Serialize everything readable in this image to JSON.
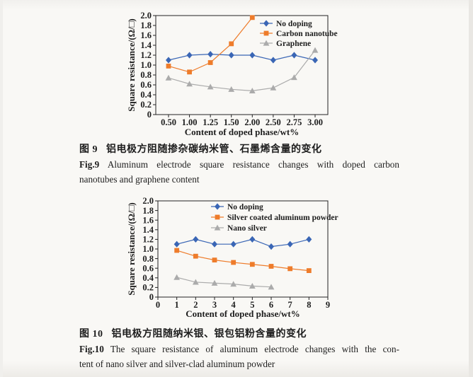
{
  "page": {
    "background": "#f9f8f5",
    "text_color": "#1e1e1e"
  },
  "colors": {
    "no_doping_blue": "#3a66b5",
    "doped_orange": "#ee7c2b",
    "doped_gray": "#ababab"
  },
  "figures": [
    {
      "caption_zh_label": "图 9",
      "caption_zh_text": "铝电极方阻随掺杂碳纳米管、石墨烯含量的变化",
      "caption_en_label": "Fig.9",
      "caption_en_line1": "Aluminum electrode square resistance changes with doped carbon",
      "caption_en_line2": "nanotubes and graphene content"
    },
    {
      "caption_zh_label": "图 10",
      "caption_zh_text": "铝电极方阻随纳米银、银包铝粉含量的变化",
      "caption_en_label": "Fig.10",
      "caption_en_line1": "The square resistance of aluminum electrode changes with the con-",
      "caption_en_line2": "tent of nano silver and silver-clad aluminum powder"
    }
  ],
  "chart_data": [
    {
      "id": "fig9",
      "type": "line",
      "title": "",
      "xlabel": "Content of doped phase/wt%",
      "ylabel": "Square resistance/(Ω/□)",
      "x_mode": "categorical",
      "categories": [
        "0.50",
        "1.00",
        "1.25",
        "1.50",
        "2.00",
        "2.50",
        "2.75",
        "3.00"
      ],
      "ylim": [
        0,
        2.0
      ],
      "yticks": [
        "0",
        "0.2",
        "0.4",
        "0.6",
        "0.8",
        "1.0",
        "1.2",
        "1.4",
        "1.6",
        "1.8",
        "2.0"
      ],
      "grid": false,
      "legend_position": "top-right-inside",
      "series": [
        {
          "name": "No doping",
          "marker": "diamond",
          "color": "#3a66b5",
          "values": [
            1.1,
            1.2,
            1.22,
            1.2,
            1.2,
            1.1,
            1.2,
            1.1
          ]
        },
        {
          "name": "Carbon nanotube",
          "marker": "square",
          "color": "#ee7c2b",
          "values": [
            0.98,
            0.86,
            1.05,
            1.43,
            1.96
          ]
        },
        {
          "name": "Graphene",
          "marker": "triangle",
          "color": "#ababab",
          "values": [
            0.74,
            0.62,
            0.56,
            0.51,
            0.48,
            0.54,
            0.75,
            1.3
          ]
        }
      ]
    },
    {
      "id": "fig10",
      "type": "line",
      "title": "",
      "xlabel": "Content of doped phase/wt%",
      "ylabel": "Square resistance/(Ω/□)",
      "x_mode": "numeric",
      "xlim": [
        0,
        9
      ],
      "xticks": [
        0,
        1,
        2,
        3,
        4,
        5,
        6,
        7,
        8,
        9
      ],
      "ylim": [
        0,
        2.0
      ],
      "yticks": [
        "0",
        "0.2",
        "0.4",
        "0.6",
        "0.8",
        "1.0",
        "1.2",
        "1.4",
        "1.6",
        "1.8",
        "2.0"
      ],
      "grid": false,
      "legend_position": "top-center-inside",
      "series": [
        {
          "name": "No doping",
          "marker": "diamond",
          "color": "#3a66b5",
          "x": [
            1,
            2,
            3,
            4,
            5,
            6,
            7,
            8
          ],
          "values": [
            1.1,
            1.2,
            1.1,
            1.1,
            1.2,
            1.05,
            1.1,
            1.2
          ]
        },
        {
          "name": "Silver coated aluminum powder",
          "marker": "square",
          "color": "#ee7c2b",
          "x": [
            1,
            2,
            3,
            4,
            5,
            6,
            7,
            8
          ],
          "values": [
            0.97,
            0.85,
            0.77,
            0.72,
            0.68,
            0.64,
            0.59,
            0.55
          ]
        },
        {
          "name": "Nano silver",
          "marker": "triangle",
          "color": "#ababab",
          "x": [
            1,
            2,
            3,
            4,
            5,
            6
          ],
          "values": [
            0.41,
            0.31,
            0.29,
            0.27,
            0.23,
            0.21
          ]
        }
      ]
    }
  ]
}
